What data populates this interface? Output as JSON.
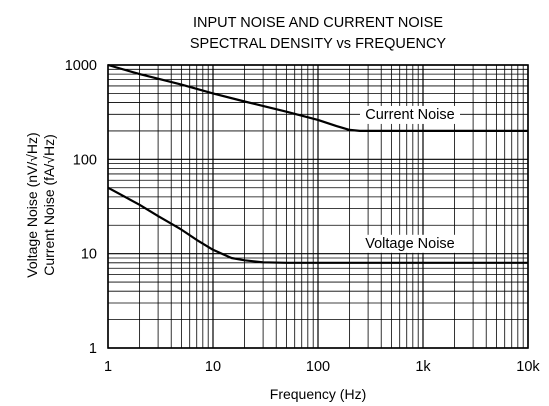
{
  "chart_data": {
    "type": "line",
    "title_lines": [
      "INPUT NOISE AND CURRENT NOISE",
      "SPECTRAL DENSITY vs FREQUENCY"
    ],
    "xlabel": "Frequency (Hz)",
    "ylabel_lines": [
      "Voltage Noise (nV/√Hz)",
      "Current Noise (fA/√Hz)"
    ],
    "x_scale": "log",
    "y_scale": "log",
    "xlim": [
      1,
      10000
    ],
    "ylim": [
      1,
      1000
    ],
    "x_ticks": [
      {
        "value": 1,
        "label": "1"
      },
      {
        "value": 10,
        "label": "10"
      },
      {
        "value": 100,
        "label": "100"
      },
      {
        "value": 1000,
        "label": "1k"
      },
      {
        "value": 10000,
        "label": "10k"
      }
    ],
    "y_ticks": [
      {
        "value": 1,
        "label": "1"
      },
      {
        "value": 10,
        "label": "10"
      },
      {
        "value": 100,
        "label": "100"
      },
      {
        "value": 1000,
        "label": "1000"
      }
    ],
    "grid": true,
    "series": [
      {
        "name": "Current Noise",
        "color": "#000000",
        "x": [
          1,
          2,
          5,
          10,
          20,
          50,
          100,
          150,
          200,
          250,
          300,
          500,
          1000,
          10000
        ],
        "y": [
          1000,
          800,
          620,
          500,
          410,
          320,
          262,
          225,
          205,
          200,
          200,
          200,
          200,
          200
        ]
      },
      {
        "name": "Voltage Noise",
        "color": "#000000",
        "x": [
          1,
          2,
          3,
          5,
          7,
          10,
          15,
          20,
          30,
          50,
          100,
          1000,
          10000
        ],
        "y": [
          50,
          33,
          25,
          18,
          14,
          11,
          9,
          8.5,
          8.1,
          8,
          8,
          8,
          8
        ]
      }
    ],
    "annotations": [
      {
        "text": "Current Noise",
        "series": "Current Noise"
      },
      {
        "text": "Voltage Noise",
        "series": "Voltage Noise"
      }
    ]
  }
}
